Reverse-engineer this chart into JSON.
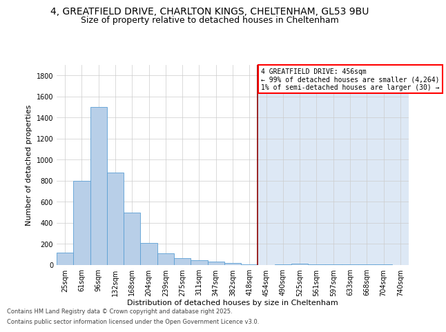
{
  "title1": "4, GREATFIELD DRIVE, CHARLTON KINGS, CHELTENHAM, GL53 9BU",
  "title2": "Size of property relative to detached houses in Cheltenham",
  "xlabel": "Distribution of detached houses by size in Cheltenham",
  "ylabel": "Number of detached properties",
  "categories": [
    "25sqm",
    "61sqm",
    "96sqm",
    "132sqm",
    "168sqm",
    "204sqm",
    "239sqm",
    "275sqm",
    "311sqm",
    "347sqm",
    "382sqm",
    "418sqm",
    "454sqm",
    "490sqm",
    "525sqm",
    "561sqm",
    "597sqm",
    "633sqm",
    "668sqm",
    "704sqm",
    "740sqm"
  ],
  "values": [
    120,
    800,
    1500,
    880,
    500,
    210,
    110,
    65,
    45,
    30,
    20,
    5,
    0,
    5,
    15,
    5,
    5,
    5,
    5,
    5,
    0
  ],
  "bar_color": "#b8cfe8",
  "bar_edge_color": "#5a9fd4",
  "bg_left_color": "#ffffff",
  "bg_right_color": "#dde8f5",
  "red_line_index": 12,
  "legend_line1": "4 GREATFIELD DRIVE: 456sqm",
  "legend_line2": "← 99% of detached houses are smaller (4,264)",
  "legend_line3": "1% of semi-detached houses are larger (30) →",
  "ylim": [
    0,
    1900
  ],
  "yticks": [
    0,
    200,
    400,
    600,
    800,
    1000,
    1200,
    1400,
    1600,
    1800
  ],
  "footer1": "Contains HM Land Registry data © Crown copyright and database right 2025.",
  "footer2": "Contains public sector information licensed under the Open Government Licence v3.0.",
  "title1_fontsize": 10,
  "title2_fontsize": 9,
  "axis_fontsize": 8,
  "tick_fontsize": 7,
  "footer_fontsize": 6
}
